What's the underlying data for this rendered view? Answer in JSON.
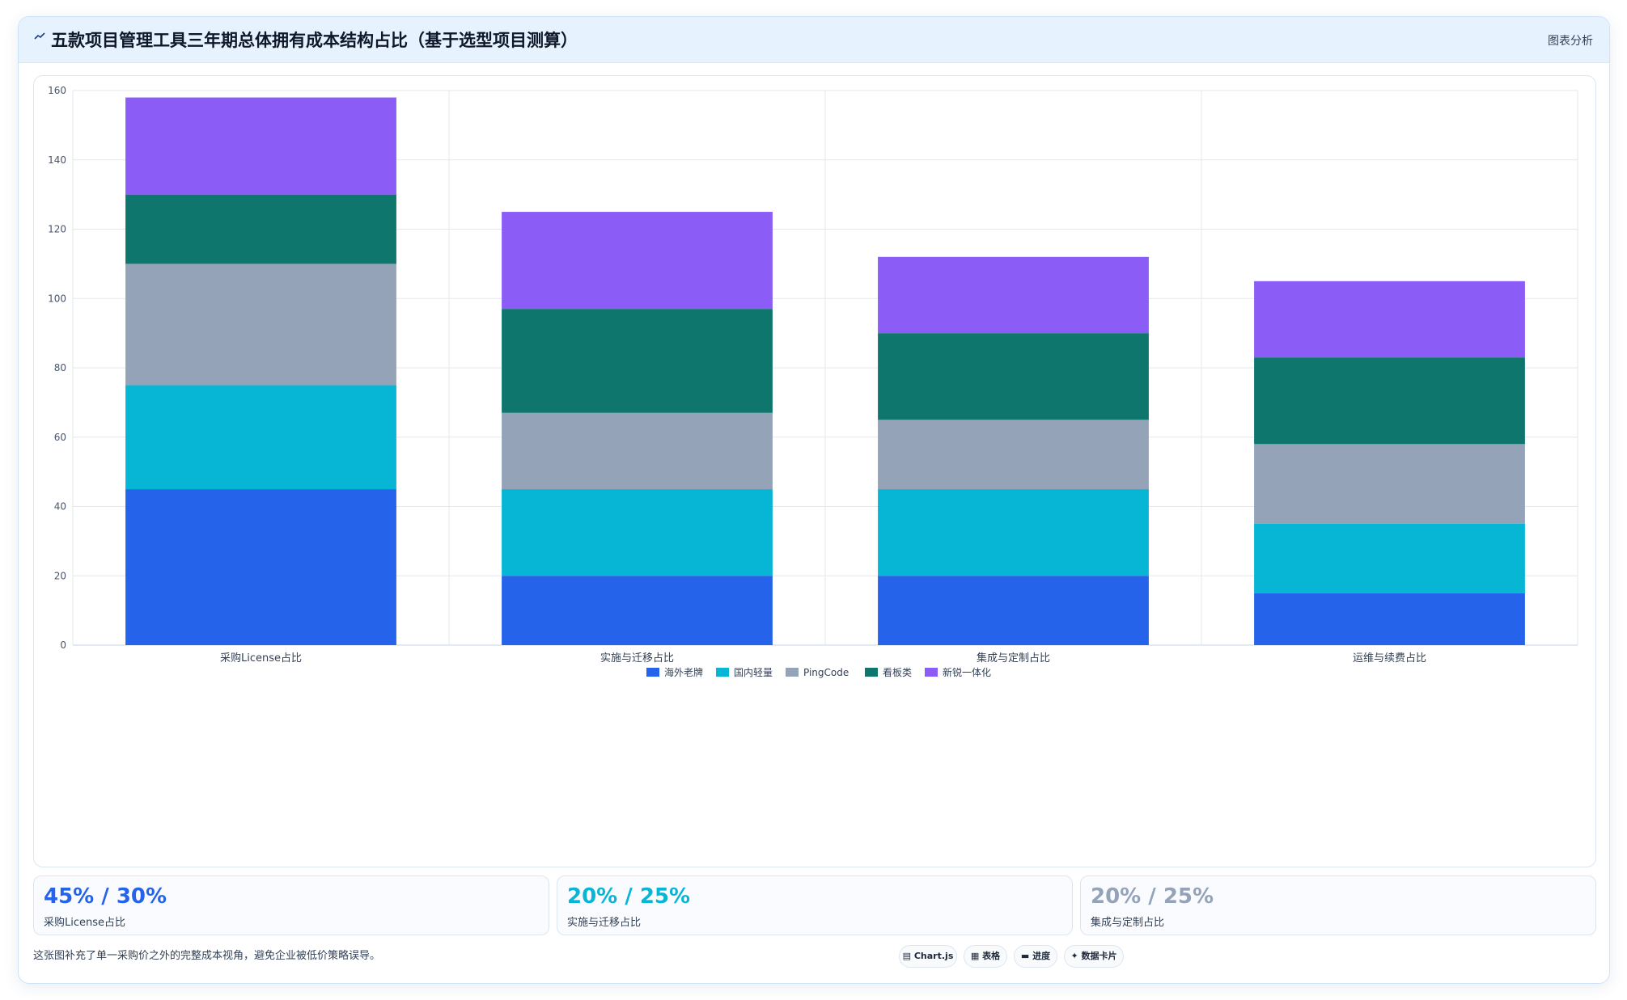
{
  "header": {
    "icon": "trend-icon",
    "title": "五款项目管理工具三年期总体拥有成本结构占比（基于选型项目测算）",
    "tag": "图表分析"
  },
  "chart_data": {
    "type": "bar",
    "stacked": true,
    "categories": [
      "采购License占比",
      "实施与迁移占比",
      "集成与定制占比",
      "运维与续费占比"
    ],
    "series": [
      {
        "name": "海外老牌",
        "color": "#2563eb",
        "values": [
          45,
          20,
          20,
          15
        ]
      },
      {
        "name": "国内轻量",
        "color": "#06b6d4",
        "values": [
          30,
          25,
          25,
          20
        ]
      },
      {
        "name": "PingCode",
        "color": "#94a3b8",
        "values": [
          35,
          22,
          20,
          23
        ]
      },
      {
        "name": "看板类",
        "color": "#0f766e",
        "values": [
          20,
          30,
          25,
          25
        ]
      },
      {
        "name": "新锐一体化",
        "color": "#8b5cf6",
        "values": [
          28,
          28,
          22,
          22
        ]
      }
    ],
    "ylim": [
      0,
      160
    ],
    "yticks": [
      0,
      20,
      40,
      60,
      80,
      100,
      120,
      140,
      160
    ],
    "grid": true,
    "legend": "bottom"
  },
  "stats": [
    {
      "value": "45% / 30%",
      "label": "采购License占比",
      "color": "#2563eb"
    },
    {
      "value": "20% / 25%",
      "label": "实施与迁移占比",
      "color": "#06b6d4"
    },
    {
      "value": "20% / 25%",
      "label": "集成与定制占比",
      "color": "#94a3b8"
    }
  ],
  "footnote": "这张图补充了单一采购价之外的完整成本视角，避免企业被低价策略误导。",
  "chips": [
    {
      "label": "Chart.js",
      "icon": "chart-icon"
    },
    {
      "label": "表格",
      "icon": "table-icon"
    },
    {
      "label": "进度",
      "icon": "progress-icon"
    },
    {
      "label": "数据卡片",
      "icon": "card-icon"
    }
  ]
}
